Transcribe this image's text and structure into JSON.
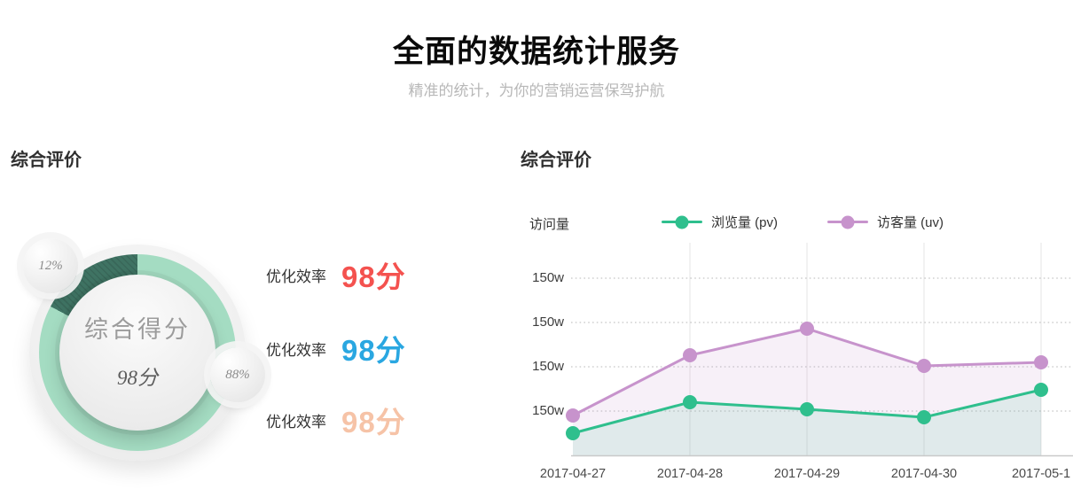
{
  "header": {
    "title": "全面的数据统计服务",
    "subtitle": "精准的统计，为你的营销运营保驾护航"
  },
  "left_panel": {
    "section_title": "综合评价",
    "gauge": {
      "center_label": "综合得分",
      "center_score": "98分",
      "badge_small": "12%",
      "badge_large": "88%",
      "ring_color": "#a4dcc2",
      "segment_color": "#3f7363",
      "segment_percent": 12
    },
    "metrics": [
      {
        "label": "优化效率",
        "value": "98分",
        "color": "#f4524f"
      },
      {
        "label": "优化效率",
        "value": "98分",
        "color": "#2aa7e1"
      },
      {
        "label": "优化效率",
        "value": "98分",
        "color": "#f6c3a7"
      }
    ]
  },
  "right_panel": {
    "section_title": "综合评价",
    "axis_title": "访问量",
    "legend": [
      {
        "label": "浏览量 (pv)",
        "color": "#2fbf8d"
      },
      {
        "label": "访客量 (uv)",
        "color": "#c793cc"
      }
    ]
  },
  "chart_data": {
    "type": "line",
    "title": "综合评价",
    "ylabel": "访问量",
    "categories": [
      "2017-04-27",
      "2017-04-28",
      "2017-04-29",
      "2017-04-30",
      "2017-05-1"
    ],
    "series": [
      {
        "name": "访客量 (uv)",
        "color": "#c793cc",
        "fill": "rgba(199,147,204,0.14)",
        "values": [
          45,
          113,
          143,
          101,
          105
        ]
      },
      {
        "name": "浏览量 (pv)",
        "color": "#2fbf8d",
        "fill": "rgba(47,191,141,0.11)",
        "values": [
          25,
          60,
          52,
          43,
          74
        ]
      }
    ],
    "y_ticks": [
      {
        "value": 50,
        "label": "150w"
      },
      {
        "value": 100,
        "label": "150w"
      },
      {
        "value": 150,
        "label": "150w"
      },
      {
        "value": 200,
        "label": "150w"
      }
    ],
    "ylim": [
      0,
      250
    ],
    "grid": {
      "horizontal": "dotted",
      "vertical": "solid"
    },
    "legend_position": "top"
  }
}
